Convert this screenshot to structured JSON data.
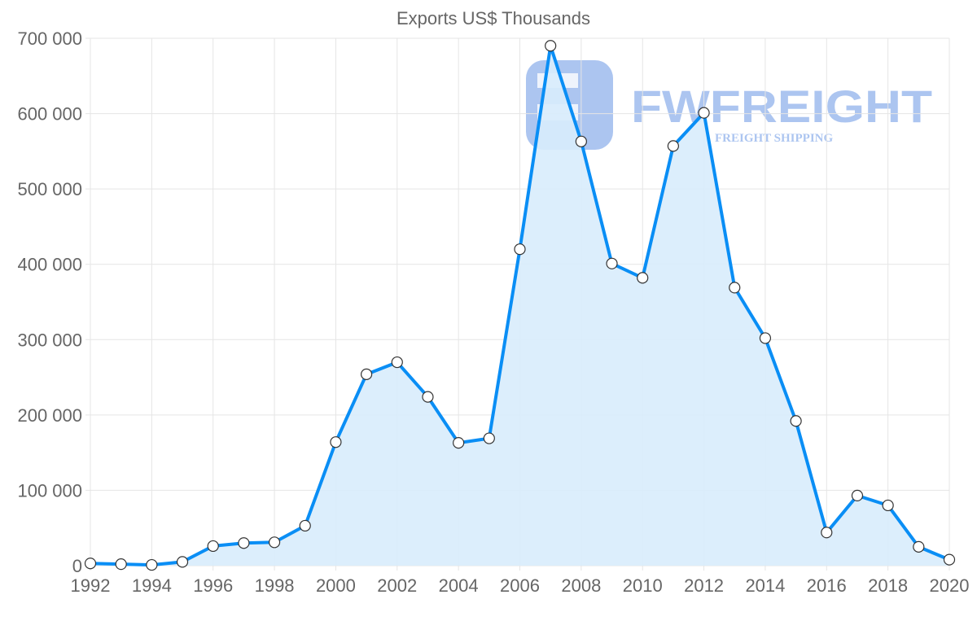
{
  "chart_data": {
    "type": "area",
    "title": "Exports US$ Thousands",
    "xlabel": "",
    "ylabel": "",
    "x": [
      1992,
      1993,
      1994,
      1995,
      1996,
      1997,
      1998,
      1999,
      2000,
      2001,
      2002,
      2003,
      2004,
      2005,
      2006,
      2007,
      2008,
      2009,
      2010,
      2011,
      2012,
      2013,
      2014,
      2015,
      2016,
      2017,
      2018,
      2019,
      2020
    ],
    "series": [
      {
        "name": "Exports",
        "values": [
          3000,
          2000,
          1000,
          5000,
          26000,
          30000,
          31000,
          53000,
          164000,
          254000,
          270000,
          224000,
          163000,
          169000,
          420000,
          690000,
          563000,
          401000,
          382000,
          557000,
          601000,
          369000,
          302000,
          192000,
          44000,
          93000,
          80000,
          25000,
          8000
        ]
      }
    ],
    "xlim": [
      1992,
      2020
    ],
    "ylim": [
      0,
      700000
    ],
    "x_ticks": [
      "1992",
      "1994",
      "1996",
      "1998",
      "2000",
      "2002",
      "2004",
      "2006",
      "2008",
      "2010",
      "2012",
      "2014",
      "2016",
      "2018",
      "2020"
    ],
    "y_ticks": [
      "0",
      "100 000",
      "200 000",
      "300 000",
      "400 000",
      "500 000",
      "600 000",
      "700 000"
    ],
    "grid": true,
    "colors": {
      "line": "#0a8ef5",
      "fill": "#d8ecfc",
      "point_fill": "#ffffff",
      "point_stroke": "#333333"
    }
  },
  "watermark": {
    "brand": "FWFREIGHT",
    "tagline": "FREIGHT SHIPPING"
  }
}
